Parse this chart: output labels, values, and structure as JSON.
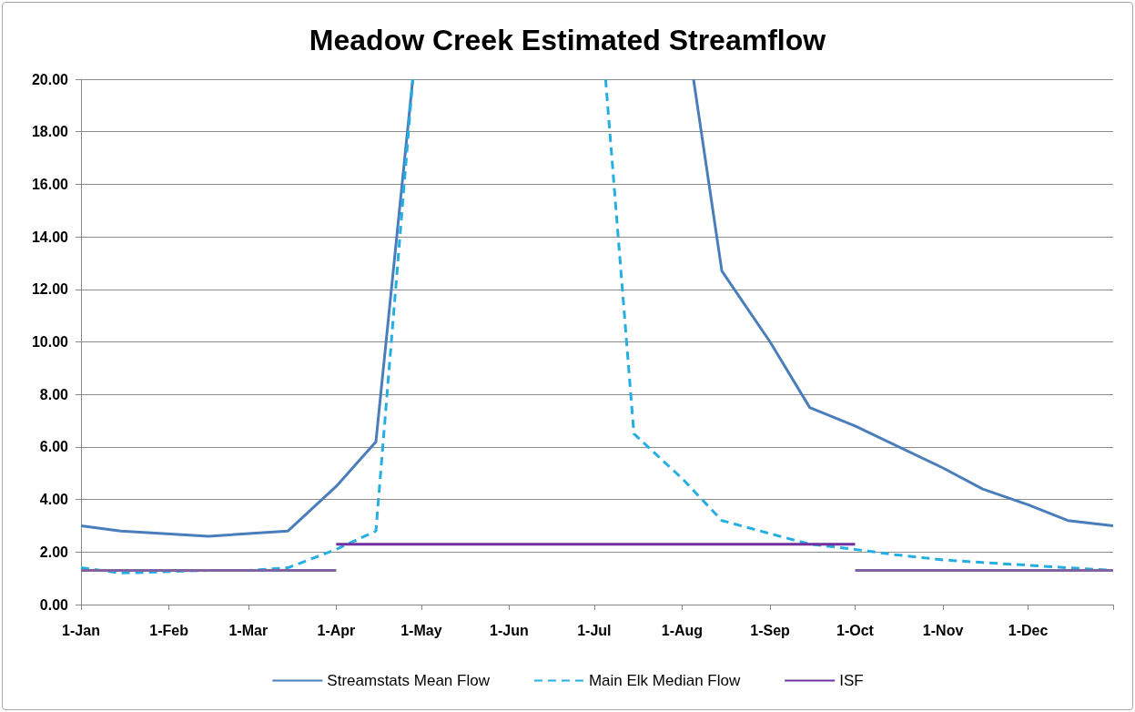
{
  "chart_data": {
    "type": "line",
    "title": "Meadow Creek Estimated Streamflow",
    "xlim": [
      "--01-01",
      "--12-31"
    ],
    "xticks": [
      {
        "value": "--01-01",
        "label": "1-Jan"
      },
      {
        "value": "--02-01",
        "label": "1-Feb"
      },
      {
        "value": "--03-01",
        "label": "1-Mar"
      },
      {
        "value": "--04-01",
        "label": "1-Apr"
      },
      {
        "value": "--05-01",
        "label": "1-May"
      },
      {
        "value": "--06-01",
        "label": "1-Jun"
      },
      {
        "value": "--07-01",
        "label": "1-Jul"
      },
      {
        "value": "--08-01",
        "label": "1-Aug"
      },
      {
        "value": "--09-01",
        "label": "1-Sep"
      },
      {
        "value": "--10-01",
        "label": "1-Oct"
      },
      {
        "value": "--11-01",
        "label": "1-Nov"
      },
      {
        "value": "--12-01",
        "label": "1-Dec"
      },
      {
        "value": "--12-31",
        "label": null
      }
    ],
    "ylim": [
      0,
      20
    ],
    "yticks": [
      {
        "value": 0,
        "label": "0.00"
      },
      {
        "value": 2,
        "label": "2.00"
      },
      {
        "value": 4,
        "label": "4.00"
      },
      {
        "value": 6,
        "label": "6.00"
      },
      {
        "value": 8,
        "label": "8.00"
      },
      {
        "value": 10,
        "label": "10.00"
      },
      {
        "value": 12,
        "label": "12.00"
      },
      {
        "value": 14,
        "label": "14.00"
      },
      {
        "value": 16,
        "label": "16.00"
      },
      {
        "value": 18,
        "label": "18.00"
      },
      {
        "value": 20,
        "label": "20.00"
      }
    ],
    "grid": "y",
    "legend": "bottom",
    "marker": "none",
    "series": [
      {
        "name": "Streamstats Mean Flow",
        "color": "#4a7ebb",
        "line_style": "solid",
        "x": [
          "--01-01",
          "--01-15",
          "--02-15",
          "--03-15",
          "--04-01",
          "--04-15",
          "--04-28",
          "--06-15",
          "--08-05",
          "--08-15",
          "--09-01",
          "--09-15",
          "--10-01",
          "--11-01",
          "--11-15",
          "--12-01",
          "--12-15",
          "--12-31"
        ],
        "values": [
          3.0,
          2.8,
          2.6,
          2.8,
          4.5,
          6.2,
          20,
          null,
          20,
          12.7,
          10.0,
          7.5,
          6.8,
          5.2,
          4.4,
          3.8,
          3.2,
          3.0
        ]
      },
      {
        "name": "Main Elk Median Flow",
        "color": "#25aee2",
        "line_style": "dashed",
        "x": [
          "--01-01",
          "--01-15",
          "--02-15",
          "--03-01",
          "--03-15",
          "--04-01",
          "--04-15",
          "--04-28",
          "--06-01",
          "--07-05",
          "--07-15",
          "--08-01",
          "--08-15",
          "--09-01",
          "--09-15",
          "--10-01",
          "--10-15",
          "--11-01",
          "--11-15",
          "--12-01",
          "--12-15",
          "--12-31"
        ],
        "values": [
          1.4,
          1.2,
          1.3,
          1.3,
          1.4,
          2.1,
          2.8,
          20,
          null,
          20,
          6.5,
          4.8,
          3.2,
          2.7,
          2.3,
          2.1,
          1.9,
          1.7,
          1.6,
          1.5,
          1.4,
          1.3
        ]
      },
      {
        "name": "ISF",
        "color": "#7030a0",
        "line_style": "solid",
        "x": [
          "--04-01",
          "--10-01"
        ],
        "values": [
          2.3,
          2.3
        ]
      },
      {
        "color": "#8064a2",
        "line_style": "solid",
        "x": [
          "--01-01",
          "--04-01",
          "--06-01",
          "--10-01",
          "--12-31"
        ],
        "values": [
          1.3,
          1.3,
          null,
          1.3,
          1.3
        ]
      }
    ]
  }
}
